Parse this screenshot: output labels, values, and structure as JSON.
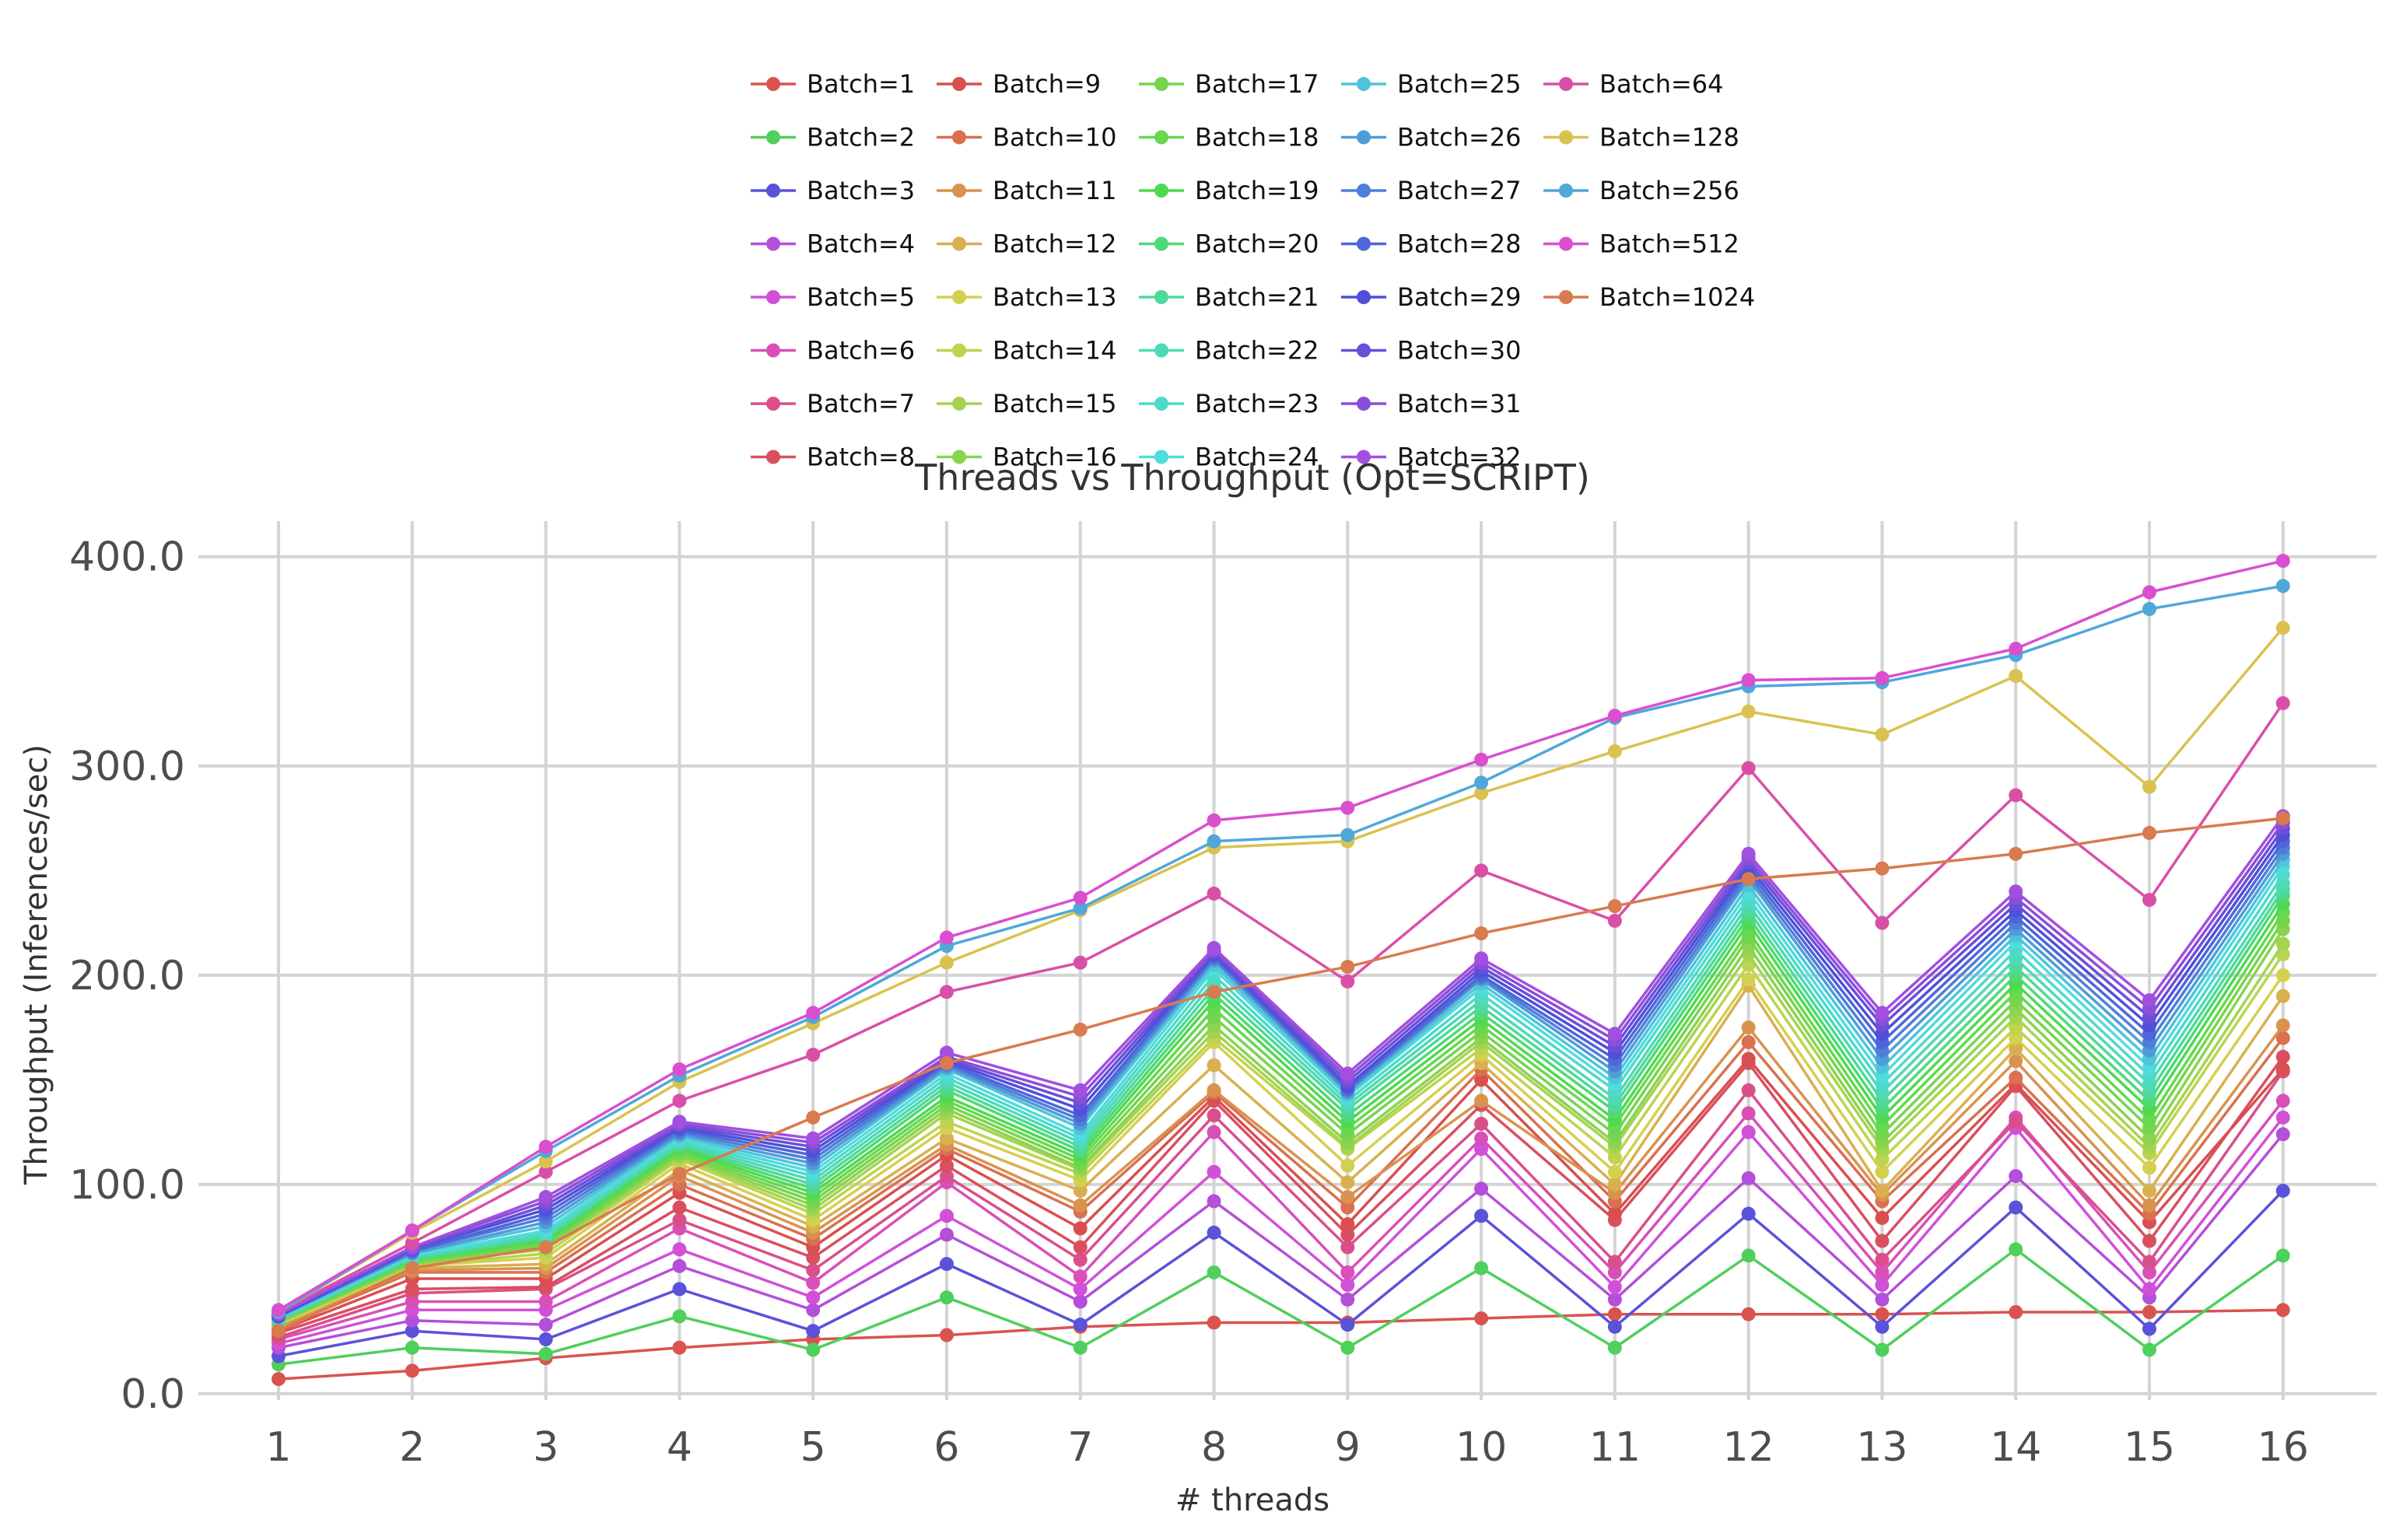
{
  "chart_data": {
    "type": "line",
    "title": "Threads vs Throughput (Opt=SCRIPT)",
    "xlabel": "# threads",
    "ylabel": "Throughput (Inferences/sec)",
    "x": [
      1,
      2,
      3,
      4,
      5,
      6,
      7,
      8,
      9,
      10,
      11,
      12,
      13,
      14,
      15,
      16
    ],
    "xlim": [
      0.4,
      16.7
    ],
    "ylim": [
      -3,
      417
    ],
    "yticks": [
      0,
      100,
      200,
      300,
      400
    ],
    "ytick_labels": [
      "0.0",
      "100.0",
      "200.0",
      "300.0",
      "400.0"
    ],
    "xtick_labels": [
      "1",
      "2",
      "3",
      "4",
      "5",
      "6",
      "7",
      "8",
      "9",
      "10",
      "11",
      "12",
      "13",
      "14",
      "15",
      "16"
    ],
    "grid": true,
    "legend_position": "top-center",
    "legend_columns": 5,
    "series": [
      {
        "name": "Batch=1",
        "color": "#d9534f",
        "values": [
          7,
          11,
          17,
          22,
          26,
          28,
          32,
          34,
          34,
          36,
          38,
          38,
          38,
          39,
          39,
          40
        ]
      },
      {
        "name": "Batch=2",
        "color": "#4fcf5c",
        "values": [
          14,
          22,
          19,
          37,
          21,
          46,
          22,
          58,
          22,
          60,
          22,
          66,
          21,
          69,
          21,
          66
        ]
      },
      {
        "name": "Batch=3",
        "color": "#5a52d9",
        "values": [
          18,
          30,
          26,
          50,
          30,
          62,
          33,
          77,
          33,
          85,
          32,
          86,
          32,
          89,
          31,
          97
        ]
      },
      {
        "name": "Batch=4",
        "color": "#b44fd9",
        "values": [
          22,
          35,
          33,
          61,
          40,
          76,
          44,
          92,
          45,
          98,
          45,
          103,
          45,
          104,
          46,
          124
        ]
      },
      {
        "name": "Batch=5",
        "color": "#d050d8",
        "values": [
          24,
          40,
          40,
          69,
          46,
          85,
          50,
          106,
          52,
          117,
          51,
          125,
          52,
          127,
          50,
          132
        ]
      },
      {
        "name": "Batch=6",
        "color": "#d94fb8",
        "values": [
          26,
          44,
          44,
          79,
          53,
          101,
          56,
          125,
          58,
          122,
          58,
          134,
          58,
          132,
          58,
          140
        ]
      },
      {
        "name": "Batch=7",
        "color": "#d94f8a",
        "values": [
          27,
          48,
          50,
          83,
          59,
          104,
          64,
          133,
          70,
          129,
          63,
          145,
          64,
          130,
          63,
          154
        ]
      },
      {
        "name": "Batch=8",
        "color": "#d94f60",
        "values": [
          29,
          50,
          51,
          89,
          65,
          109,
          70,
          140,
          76,
          138,
          83,
          158,
          73,
          147,
          73,
          161
        ]
      },
      {
        "name": "Batch=9",
        "color": "#d94f4f",
        "values": [
          30,
          55,
          55,
          96,
          70,
          114,
          79,
          142,
          81,
          150,
          86,
          160,
          84,
          148,
          82,
          155
        ]
      },
      {
        "name": "Batch=10",
        "color": "#d9704f",
        "values": [
          31,
          58,
          58,
          100,
          74,
          117,
          87,
          144,
          89,
          155,
          92,
          168,
          92,
          151,
          86,
          170
        ]
      },
      {
        "name": "Batch=11",
        "color": "#d9924f",
        "values": [
          32,
          59,
          60,
          104,
          77,
          119,
          90,
          145,
          94,
          140,
          96,
          175,
          95,
          159,
          90,
          176
        ]
      },
      {
        "name": "Batch=12",
        "color": "#d9b04f",
        "values": [
          33,
          60,
          62,
          107,
          80,
          122,
          97,
          157,
          101,
          158,
          100,
          195,
          97,
          165,
          97,
          190
        ]
      },
      {
        "name": "Batch=13",
        "color": "#d4d04f",
        "values": [
          33,
          61,
          65,
          110,
          83,
          127,
          102,
          168,
          109,
          162,
          106,
          198,
          106,
          170,
          108,
          200
        ]
      },
      {
        "name": "Batch=14",
        "color": "#bcd44f",
        "values": [
          34,
          61,
          67,
          112,
          86,
          130,
          105,
          170,
          117,
          165,
          113,
          205,
          112,
          175,
          115,
          210
        ]
      },
      {
        "name": "Batch=15",
        "color": "#a4d44f",
        "values": [
          34,
          62,
          69,
          113,
          88,
          134,
          107,
          173,
          118,
          168,
          118,
          210,
          117,
          180,
          118,
          215
        ]
      },
      {
        "name": "Batch=16",
        "color": "#8ad44f",
        "values": [
          34,
          62,
          70,
          114,
          90,
          136,
          108,
          176,
          120,
          170,
          120,
          214,
          120,
          184,
          122,
          222
        ]
      },
      {
        "name": "Batch=17",
        "color": "#77d44f",
        "values": [
          34,
          63,
          71,
          115,
          92,
          138,
          110,
          180,
          124,
          173,
          124,
          218,
          124,
          188,
          127,
          226
        ]
      },
      {
        "name": "Batch=18",
        "color": "#66d94f",
        "values": [
          35,
          63,
          72,
          116,
          94,
          140,
          112,
          184,
          127,
          176,
          128,
          221,
          128,
          192,
          131,
          230
        ]
      },
      {
        "name": "Batch=19",
        "color": "#4fd94f",
        "values": [
          35,
          64,
          73,
          117,
          96,
          142,
          114,
          188,
          130,
          179,
          131,
          225,
          132,
          196,
          136,
          234
        ]
      },
      {
        "name": "Batch=20",
        "color": "#4fd977",
        "values": [
          35,
          64,
          74,
          118,
          98,
          145,
          116,
          191,
          133,
          182,
          135,
          228,
          136,
          200,
          140,
          238
        ]
      },
      {
        "name": "Batch=21",
        "color": "#4fd99a",
        "values": [
          35,
          65,
          75,
          119,
          100,
          147,
          118,
          194,
          136,
          185,
          138,
          231,
          140,
          204,
          144,
          241
        ]
      },
      {
        "name": "Batch=22",
        "color": "#4fd9b5",
        "values": [
          36,
          65,
          76,
          120,
          102,
          149,
          120,
          197,
          138,
          188,
          141,
          234,
          144,
          208,
          148,
          244
        ]
      },
      {
        "name": "Batch=23",
        "color": "#4fd9cc",
        "values": [
          36,
          66,
          77,
          121,
          104,
          151,
          122,
          200,
          140,
          191,
          145,
          237,
          148,
          212,
          152,
          248
        ]
      },
      {
        "name": "Batch=24",
        "color": "#4fdcdc",
        "values": [
          36,
          66,
          78,
          122,
          106,
          153,
          124,
          203,
          142,
          194,
          148,
          240,
          152,
          216,
          156,
          252
        ]
      },
      {
        "name": "Batch=25",
        "color": "#4fc4d9",
        "values": [
          36,
          67,
          80,
          123,
          108,
          155,
          127,
          205,
          143,
          196,
          151,
          243,
          156,
          219,
          160,
          255
        ]
      },
      {
        "name": "Batch=26",
        "color": "#4f9cd9",
        "values": [
          37,
          67,
          82,
          124,
          110,
          156,
          129,
          207,
          144,
          198,
          154,
          246,
          160,
          222,
          164,
          258
        ]
      },
      {
        "name": "Batch=27",
        "color": "#4f7ed9",
        "values": [
          37,
          68,
          84,
          125,
          112,
          157,
          131,
          208,
          145,
          199,
          157,
          248,
          164,
          225,
          168,
          261
        ]
      },
      {
        "name": "Batch=28",
        "color": "#4f65d9",
        "values": [
          37,
          68,
          86,
          126,
          114,
          158,
          133,
          209,
          146,
          200,
          160,
          250,
          168,
          228,
          172,
          264
        ]
      },
      {
        "name": "Batch=29",
        "color": "#4f4fd9",
        "values": [
          37,
          69,
          88,
          127,
          116,
          159,
          136,
          210,
          147,
          202,
          163,
          252,
          172,
          231,
          176,
          267
        ]
      },
      {
        "name": "Batch=30",
        "color": "#6a4fd9",
        "values": [
          38,
          69,
          90,
          128,
          118,
          160,
          139,
          211,
          149,
          204,
          166,
          254,
          176,
          234,
          180,
          270
        ]
      },
      {
        "name": "Batch=31",
        "color": "#8a4fd9",
        "values": [
          38,
          70,
          92,
          129,
          120,
          161,
          142,
          212,
          151,
          206,
          169,
          256,
          179,
          237,
          184,
          273
        ]
      },
      {
        "name": "Batch=32",
        "color": "#a24fe0",
        "values": [
          38,
          70,
          94,
          130,
          122,
          163,
          145,
          213,
          153,
          208,
          172,
          258,
          182,
          240,
          188,
          276
        ]
      },
      {
        "name": "Batch=64",
        "color": "#d94fa8",
        "values": [
          39,
          72,
          106,
          140,
          162,
          192,
          206,
          239,
          197,
          250,
          226,
          299,
          225,
          286,
          236,
          330
        ]
      },
      {
        "name": "Batch=128",
        "color": "#d9c24f",
        "values": [
          39,
          77,
          111,
          149,
          177,
          206,
          231,
          261,
          264,
          287,
          307,
          326,
          315,
          343,
          290,
          366
        ]
      },
      {
        "name": "Batch=256",
        "color": "#4fa8d9",
        "values": [
          39,
          78,
          116,
          152,
          180,
          214,
          232,
          264,
          267,
          292,
          323,
          338,
          340,
          353,
          375,
          386
        ]
      },
      {
        "name": "Batch=512",
        "color": "#d94fd0",
        "values": [
          40,
          78,
          118,
          155,
          182,
          218,
          237,
          274,
          280,
          303,
          324,
          341,
          342,
          356,
          383,
          398
        ]
      },
      {
        "name": "Batch=1024",
        "color": "#d97a4f",
        "values": [
          30,
          60,
          70,
          105,
          132,
          158,
          174,
          192,
          204,
          220,
          233,
          246,
          251,
          258,
          268,
          275
        ]
      }
    ]
  }
}
